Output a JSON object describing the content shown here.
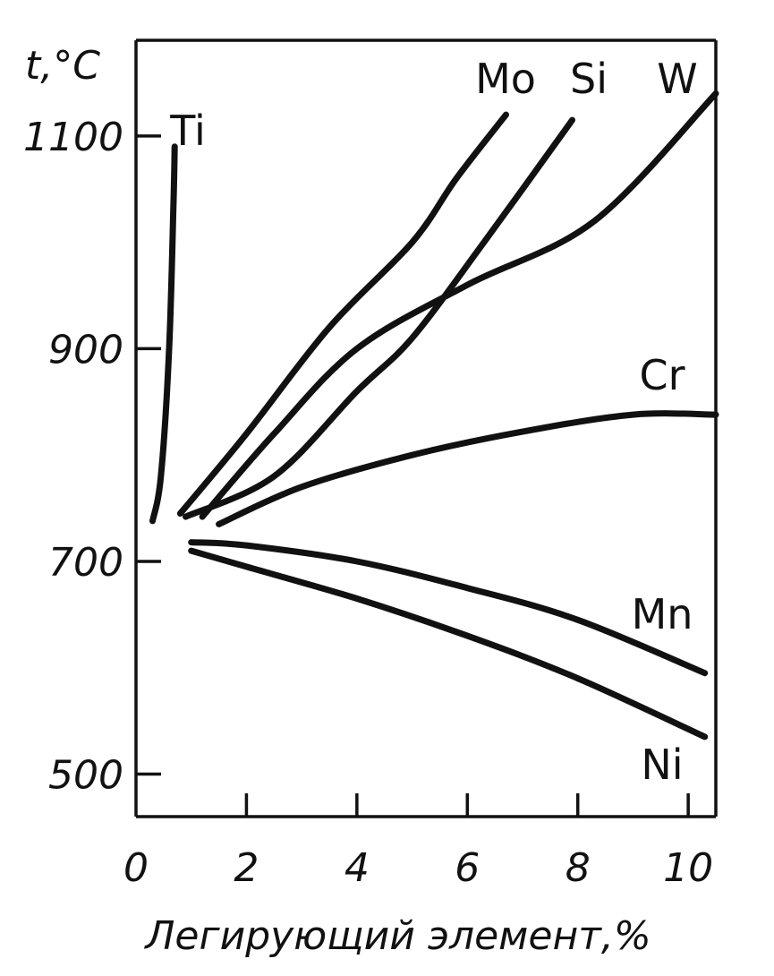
{
  "chart_data": {
    "type": "line",
    "xlabel": "Легирующий элемент,%",
    "ylabel": "t,°C",
    "xlim": [
      0,
      10.5
    ],
    "ylim": [
      460,
      1190
    ],
    "x_ticks": [
      0,
      2,
      4,
      6,
      8,
      10
    ],
    "y_ticks": [
      500,
      700,
      900,
      1100
    ],
    "grid": false,
    "series": [
      {
        "name": "Ti",
        "x": [
          0.3,
          0.45,
          0.6,
          0.68,
          0.7
        ],
        "y": [
          738,
          780,
          900,
          1040,
          1090
        ]
      },
      {
        "name": "Mo",
        "x": [
          0.8,
          2,
          3.5,
          5,
          5.8,
          6.7
        ],
        "y": [
          745,
          820,
          920,
          1000,
          1060,
          1120
        ]
      },
      {
        "name": "Si",
        "x": [
          0.9,
          2.5,
          4,
          5,
          6.3,
          7.9
        ],
        "y": [
          742,
          780,
          860,
          910,
          1000,
          1115
        ]
      },
      {
        "name": "W",
        "x": [
          1.2,
          2.5,
          4,
          6,
          8.3,
          10.5
        ],
        "y": [
          742,
          820,
          900,
          960,
          1020,
          1140
        ]
      },
      {
        "name": "Cr",
        "x": [
          1.5,
          3,
          5,
          7,
          9,
          10.5
        ],
        "y": [
          735,
          770,
          800,
          822,
          838,
          838
        ]
      },
      {
        "name": "Mn",
        "x": [
          1,
          2,
          4,
          6,
          8,
          10.3
        ],
        "y": [
          718,
          715,
          700,
          675,
          645,
          595
        ]
      },
      {
        "name": "Ni",
        "x": [
          1,
          2,
          4,
          6,
          8,
          10.3
        ],
        "y": [
          710,
          695,
          665,
          630,
          590,
          535
        ]
      }
    ]
  }
}
